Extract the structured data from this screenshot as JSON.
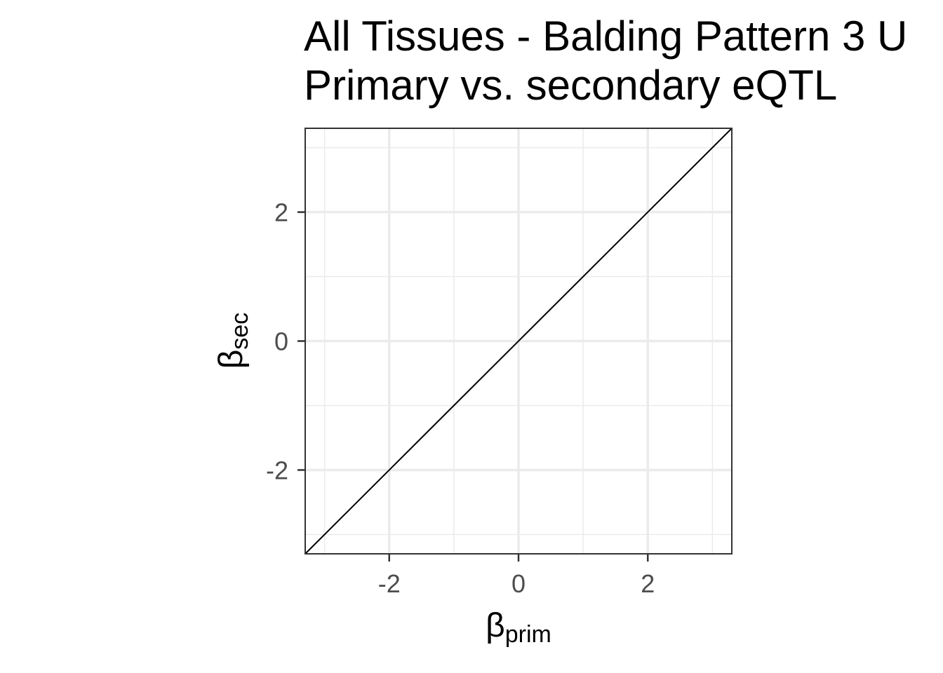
{
  "chart_data": {
    "type": "line",
    "title": "All Tissues - Balding Pattern 3 U",
    "subtitle": "Primary vs. secondary eQTL",
    "xlabel": {
      "symbol": "β",
      "subscript": "prim"
    },
    "ylabel": {
      "symbol": "β",
      "subscript": "sec"
    },
    "xlim": [
      -3.3,
      3.3
    ],
    "ylim": [
      -3.3,
      3.3
    ],
    "x_major_ticks": [
      -2,
      0,
      2
    ],
    "y_major_ticks": [
      -2,
      0,
      2
    ],
    "x_tick_labels": [
      "-2",
      "0",
      "2"
    ],
    "y_tick_labels": [
      "-2",
      "0",
      "2"
    ],
    "x_minor_ticks": [
      -3,
      -1,
      1,
      3
    ],
    "y_minor_ticks": [
      -3,
      -1,
      1,
      3
    ],
    "grid": true,
    "series": [
      {
        "x": [
          -3.3,
          3.3
        ],
        "y": [
          -3.3,
          3.3
        ],
        "color": "#000000"
      }
    ],
    "colors": {
      "panel_border": "#333333",
      "grid_major": "#ebebeb",
      "grid_minor": "#ebebeb",
      "line": "#000000"
    }
  }
}
